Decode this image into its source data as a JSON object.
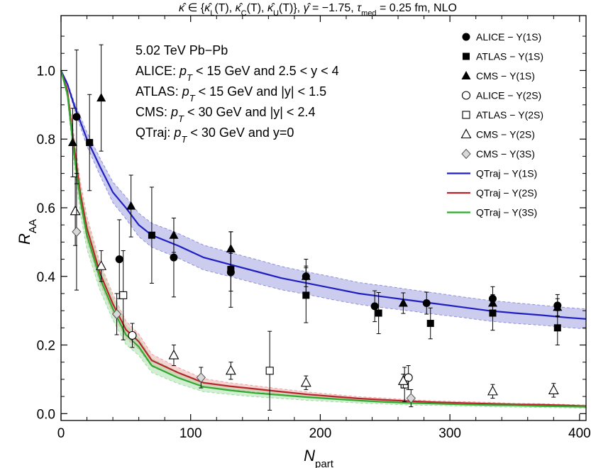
{
  "chart_data": {
    "type": "scatter",
    "title": "κ̂ ∈ {κ̂L(T), κ̂C(T), κ̂U(T)}, γ̂ = −1.75, τmed = 0.25 fm, NLO",
    "xlabel": "Npart",
    "ylabel": "RAA",
    "xlim": [
      0,
      405
    ],
    "ylim": [
      -0.02,
      1.16
    ],
    "x_ticks": [
      0,
      100,
      200,
      300,
      400
    ],
    "y_ticks": [
      0.0,
      0.2,
      0.4,
      0.6,
      0.8,
      1.0
    ],
    "x_tick_labels": [
      "0",
      "100",
      "200",
      "300",
      "400"
    ],
    "y_tick_labels": [
      "0.0",
      "0.2",
      "0.4",
      "0.6",
      "0.8",
      "1.0"
    ],
    "grid": false,
    "legend_position": "top-right",
    "annotation_lines": [
      "5.02 TeV Pb−Pb",
      "ALICE: pT < 15 GeV and 2.5 < y < 4",
      "ATLAS: pT < 15 GeV and |y| < 1.5",
      "CMS: pT < 30 GeV and |y| < 2.4",
      "QTraj:  pT < 30 GeV and y=0"
    ],
    "series": [
      {
        "name": "ALICE − Υ(1S)",
        "marker": "filled-circle",
        "color": "#000000",
        "points": [
          {
            "x": 12,
            "y": 0.865,
            "err": 0.195
          },
          {
            "x": 45,
            "y": 0.45,
            "err": 0.115
          },
          {
            "x": 87,
            "y": 0.455,
            "err": 0.115
          },
          {
            "x": 131,
            "y": 0.412,
            "err": 0.055
          },
          {
            "x": 189,
            "y": 0.4,
            "err": 0.05
          },
          {
            "x": 242,
            "y": 0.313,
            "err": 0.045
          },
          {
            "x": 282,
            "y": 0.322,
            "err": 0.032
          },
          {
            "x": 333,
            "y": 0.335,
            "err": 0.035
          },
          {
            "x": 383,
            "y": 0.315,
            "err": 0.032
          }
        ]
      },
      {
        "name": "ATLAS − Υ(1S)",
        "marker": "filled-square",
        "color": "#000000",
        "points": [
          {
            "x": 22,
            "y": 0.79,
            "err": 0.14
          },
          {
            "x": 70,
            "y": 0.52,
            "err": 0.14
          },
          {
            "x": 131,
            "y": 0.42,
            "err": 0.11
          },
          {
            "x": 189,
            "y": 0.345,
            "err": 0.08
          },
          {
            "x": 245,
            "y": 0.293,
            "err": 0.06
          },
          {
            "x": 285,
            "y": 0.263,
            "err": 0.045
          },
          {
            "x": 333,
            "y": 0.293,
            "err": 0.05
          },
          {
            "x": 383,
            "y": 0.25,
            "err": 0.05
          }
        ]
      },
      {
        "name": "CMS − Υ(1S)",
        "marker": "filled-triangle",
        "color": "#000000",
        "points": [
          {
            "x": 9,
            "y": 0.79,
            "err": 0.1
          },
          {
            "x": 31,
            "y": 0.92,
            "err": 0.155
          },
          {
            "x": 54,
            "y": 0.605,
            "err": 0.09
          },
          {
            "x": 87,
            "y": 0.52,
            "err": 0.05
          },
          {
            "x": 131,
            "y": 0.48,
            "err": 0.05
          },
          {
            "x": 189,
            "y": 0.4,
            "err": 0.03
          },
          {
            "x": 264,
            "y": 0.322,
            "err": 0.03
          },
          {
            "x": 333,
            "y": 0.322,
            "err": 0.025
          },
          {
            "x": 383,
            "y": 0.31,
            "err": 0.025
          }
        ]
      },
      {
        "name": "ALICE − Υ(2S)",
        "marker": "open-circle",
        "color": "#000000",
        "points": [
          {
            "x": 55,
            "y": 0.228,
            "err": 0.035
          },
          {
            "x": 268,
            "y": 0.105,
            "err": 0.035
          }
        ]
      },
      {
        "name": "ATLAS − Υ(2S)",
        "marker": "open-square",
        "color": "#000000",
        "points": [
          {
            "x": 48,
            "y": 0.345,
            "err": 0.13
          },
          {
            "x": 161,
            "y": 0.125,
            "err": 0.115
          },
          {
            "x": 265,
            "y": 0.085,
            "err": 0.05
          }
        ]
      },
      {
        "name": "CMS − Υ(2S)",
        "marker": "open-triangle",
        "color": "#000000",
        "points": [
          {
            "x": 11,
            "y": 0.59,
            "err": 0.1
          },
          {
            "x": 31,
            "y": 0.43,
            "err": 0.045
          },
          {
            "x": 87,
            "y": 0.17,
            "err": 0.03
          },
          {
            "x": 131,
            "y": 0.125,
            "err": 0.025
          },
          {
            "x": 189,
            "y": 0.09,
            "err": 0.02
          },
          {
            "x": 264,
            "y": 0.095,
            "err": 0.02
          },
          {
            "x": 333,
            "y": 0.065,
            "err": 0.02
          },
          {
            "x": 380,
            "y": 0.068,
            "err": 0.02
          }
        ]
      },
      {
        "name": "CMS − Υ(3S)",
        "marker": "open-diamond",
        "color": "#000000",
        "points": [
          {
            "x": 12,
            "y": 0.53,
            "err": 0.17
          },
          {
            "x": 43,
            "y": 0.29,
            "err": 0.06
          },
          {
            "x": 108,
            "y": 0.105,
            "err": 0.03
          },
          {
            "x": 270,
            "y": 0.045,
            "err": 0.025
          }
        ]
      },
      {
        "name": "QTraj − Υ(1S)",
        "type": "line",
        "color": "#1f1fbf",
        "band_color": "#8f8fdc",
        "x": [
          0,
          5,
          10,
          20,
          30,
          40,
          50,
          60,
          70,
          90,
          110,
          130,
          150,
          170,
          190,
          210,
          230,
          250,
          270,
          290,
          310,
          330,
          350,
          370,
          390,
          405
        ],
        "y": [
          1.0,
          0.96,
          0.9,
          0.8,
          0.72,
          0.645,
          0.6,
          0.55,
          0.52,
          0.49,
          0.455,
          0.435,
          0.415,
          0.395,
          0.38,
          0.365,
          0.35,
          0.34,
          0.33,
          0.32,
          0.31,
          0.3,
          0.293,
          0.287,
          0.28,
          0.276
        ],
        "band_halfwidth": [
          0.0,
          0.005,
          0.01,
          0.02,
          0.025,
          0.03,
          0.032,
          0.034,
          0.035,
          0.036,
          0.036,
          0.035,
          0.035,
          0.034,
          0.033,
          0.033,
          0.032,
          0.032,
          0.031,
          0.031,
          0.03,
          0.03,
          0.03,
          0.029,
          0.029,
          0.029
        ]
      },
      {
        "name": "QTraj − Υ(2S)",
        "type": "line",
        "color": "#b8242a",
        "band_color": "#eda0a0",
        "x": [
          0,
          5,
          10,
          15,
          20,
          30,
          40,
          50,
          60,
          70,
          90,
          110,
          130,
          150,
          170,
          190,
          210,
          230,
          250,
          270,
          290,
          310,
          330,
          350,
          370,
          390,
          405
        ],
        "y": [
          1.0,
          0.94,
          0.78,
          0.64,
          0.54,
          0.41,
          0.32,
          0.245,
          0.21,
          0.155,
          0.12,
          0.09,
          0.08,
          0.072,
          0.064,
          0.056,
          0.05,
          0.044,
          0.04,
          0.036,
          0.033,
          0.031,
          0.029,
          0.027,
          0.026,
          0.024,
          0.022
        ],
        "band_halfwidth": [
          0.0,
          0.01,
          0.03,
          0.035,
          0.035,
          0.03,
          0.028,
          0.025,
          0.022,
          0.018,
          0.015,
          0.012,
          0.01,
          0.009,
          0.008,
          0.007,
          0.006,
          0.005,
          0.005,
          0.004,
          0.004,
          0.004,
          0.004,
          0.003,
          0.003,
          0.003,
          0.003
        ]
      },
      {
        "name": "QTraj − Υ(3S)",
        "type": "line",
        "color": "#2faa2f",
        "band_color": "#9edc9e",
        "x": [
          0,
          5,
          10,
          15,
          20,
          30,
          40,
          50,
          60,
          70,
          90,
          110,
          130,
          150,
          170,
          190,
          210,
          230,
          250,
          270,
          290,
          310,
          330,
          350,
          370,
          390,
          405
        ],
        "y": [
          1.0,
          0.93,
          0.76,
          0.62,
          0.52,
          0.395,
          0.305,
          0.23,
          0.195,
          0.14,
          0.105,
          0.078,
          0.068,
          0.06,
          0.054,
          0.048,
          0.043,
          0.038,
          0.034,
          0.031,
          0.029,
          0.027,
          0.025,
          0.024,
          0.022,
          0.021,
          0.02
        ],
        "band_halfwidth": [
          0.0,
          0.012,
          0.035,
          0.04,
          0.04,
          0.035,
          0.032,
          0.028,
          0.025,
          0.02,
          0.017,
          0.014,
          0.012,
          0.011,
          0.01,
          0.009,
          0.008,
          0.007,
          0.006,
          0.006,
          0.005,
          0.005,
          0.005,
          0.005,
          0.004,
          0.004,
          0.004
        ]
      }
    ]
  }
}
